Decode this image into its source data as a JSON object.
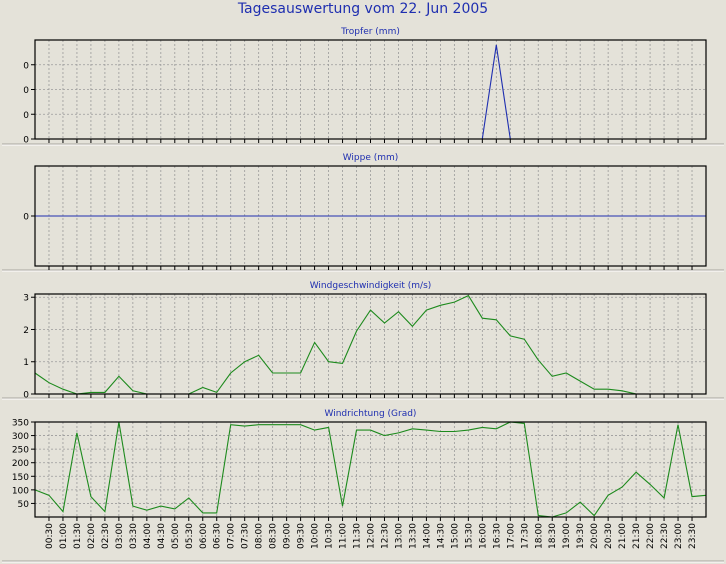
{
  "page_title": "Tagesauswertung vom 22. Jun 2005",
  "colors": {
    "background": "#e4e2d9",
    "title": "#1f2fb0",
    "blue_series": "#1f2fb0",
    "green_series": "#1d8a1d",
    "grid": "#9a9a9a"
  },
  "chart_data": [
    {
      "type": "line",
      "title": "Tropfer (mm)",
      "ytick_labels": [
        "0",
        "0",
        "0",
        "0"
      ],
      "ylim": [
        0,
        4
      ],
      "grid": true,
      "series": [
        {
          "color": "#1f2fb0",
          "x": [
            "16:00",
            "16:30",
            "17:00"
          ],
          "values": [
            0,
            3.8,
            0
          ]
        }
      ]
    },
    {
      "type": "line",
      "title": "Wippe (mm)",
      "ytick_labels": [
        "0"
      ],
      "ylim": [
        -1,
        1
      ],
      "grid": true,
      "series": [
        {
          "color": "#1f2fb0",
          "x": [
            "00:00",
            "24:00"
          ],
          "values": [
            0,
            0
          ]
        }
      ]
    },
    {
      "type": "line",
      "title": "Windgeschwindigkeit (m/s)",
      "yticks": [
        0,
        1,
        2,
        3
      ],
      "ylim": [
        0,
        3.1
      ],
      "grid": true,
      "series": [
        {
          "color": "#1d8a1d",
          "x": [
            "00:00",
            "00:30",
            "01:00",
            "01:30",
            "02:00",
            "02:30",
            "03:00",
            "03:30",
            "04:00",
            "04:30",
            "05:00",
            "05:30",
            "06:00",
            "06:30",
            "07:00",
            "07:30",
            "08:00",
            "08:30",
            "09:00",
            "09:30",
            "10:00",
            "10:30",
            "11:00",
            "11:30",
            "12:00",
            "12:30",
            "13:00",
            "13:30",
            "14:00",
            "14:30",
            "15:00",
            "15:30",
            "16:00",
            "16:30",
            "17:00",
            "17:30",
            "18:00",
            "18:30",
            "19:00",
            "19:30",
            "20:00",
            "20:30",
            "21:00",
            "21:30"
          ],
          "values": [
            0.65,
            0.35,
            0.15,
            0,
            0.05,
            0.05,
            0.55,
            0.1,
            0,
            0,
            0,
            0,
            0.2,
            0.05,
            0.65,
            1.0,
            1.2,
            0.65,
            0.65,
            0.65,
            1.6,
            1.0,
            0.95,
            1.95,
            2.6,
            2.2,
            2.55,
            2.1,
            2.6,
            2.75,
            2.85,
            3.05,
            2.35,
            2.3,
            1.8,
            1.7,
            1.05,
            0.55,
            0.65,
            0.4,
            0.15,
            0.15,
            0.1,
            0
          ]
        }
      ]
    },
    {
      "type": "line",
      "title": "Windrichtung (Grad)",
      "yticks": [
        50,
        100,
        150,
        200,
        250,
        300,
        350
      ],
      "ylim": [
        0,
        350
      ],
      "grid": true,
      "x_tick_labels": [
        "00:30",
        "01:00",
        "01:30",
        "02:00",
        "02:30",
        "03:00",
        "03:30",
        "04:00",
        "04:30",
        "05:00",
        "05:30",
        "06:00",
        "06:30",
        "07:00",
        "07:30",
        "08:00",
        "08:30",
        "09:00",
        "09:30",
        "10:00",
        "10:30",
        "11:00",
        "11:30",
        "12:00",
        "12:30",
        "13:00",
        "13:30",
        "14:00",
        "14:30",
        "15:00",
        "15:30",
        "16:00",
        "16:30",
        "17:00",
        "17:30",
        "18:00",
        "18:30",
        "19:00",
        "19:30",
        "20:00",
        "20:30",
        "21:00",
        "21:30",
        "22:00",
        "22:30",
        "23:00",
        "23:30"
      ],
      "series": [
        {
          "color": "#1d8a1d",
          "x": [
            "00:00",
            "00:30",
            "01:00",
            "01:30",
            "02:00",
            "02:30",
            "03:00",
            "03:30",
            "04:00",
            "04:30",
            "05:00",
            "05:30",
            "06:00",
            "06:30",
            "07:00",
            "07:30",
            "08:00",
            "08:30",
            "09:00",
            "09:30",
            "10:00",
            "10:30",
            "11:00",
            "11:30",
            "12:00",
            "12:30",
            "13:00",
            "13:30",
            "14:00",
            "14:30",
            "15:00",
            "15:30",
            "16:00",
            "16:30",
            "17:00",
            "17:30",
            "18:00",
            "18:30",
            "19:00",
            "19:30",
            "20:00",
            "20:30",
            "21:00",
            "21:30",
            "22:00",
            "22:30",
            "23:00",
            "23:30",
            "24:00"
          ],
          "values": [
            100,
            80,
            20,
            310,
            75,
            20,
            350,
            40,
            25,
            40,
            30,
            70,
            15,
            15,
            340,
            335,
            340,
            340,
            340,
            340,
            320,
            330,
            40,
            320,
            320,
            300,
            310,
            325,
            320,
            315,
            315,
            320,
            330,
            325,
            350,
            345,
            5,
            0,
            15,
            55,
            5,
            80,
            110,
            165,
            120,
            70,
            340,
            75,
            80
          ]
        }
      ]
    }
  ]
}
